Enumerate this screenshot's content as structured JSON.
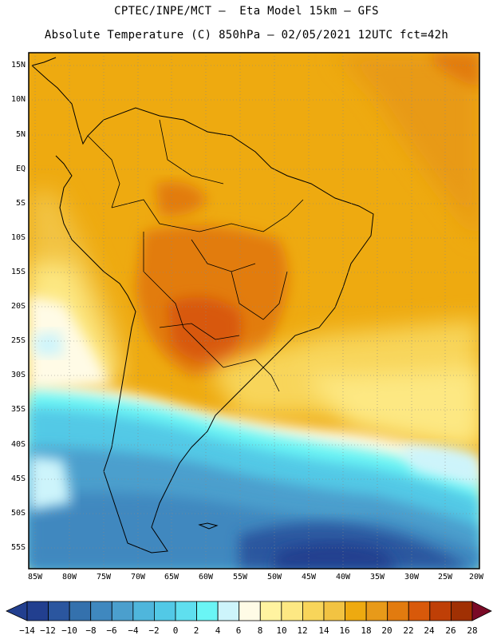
{
  "title": {
    "line1": "CPTEC/INPE/MCT –  Eta Model 15km – GFS",
    "line2": "Absolute Temperature (C) 850hPa – 02/05/2021 12UTC fct=42h"
  },
  "map": {
    "lon_range": [
      -85,
      -20
    ],
    "lat_range": [
      -58,
      17
    ],
    "lat_ticks": [
      {
        "value": 15,
        "label": "15N"
      },
      {
        "value": 10,
        "label": "10N"
      },
      {
        "value": 5,
        "label": "5N"
      },
      {
        "value": 0,
        "label": "EQ"
      },
      {
        "value": -5,
        "label": "5S"
      },
      {
        "value": -10,
        "label": "10S"
      },
      {
        "value": -15,
        "label": "15S"
      },
      {
        "value": -20,
        "label": "20S"
      },
      {
        "value": -25,
        "label": "25S"
      },
      {
        "value": -30,
        "label": "30S"
      },
      {
        "value": -35,
        "label": "35S"
      },
      {
        "value": -40,
        "label": "40S"
      },
      {
        "value": -45,
        "label": "45S"
      },
      {
        "value": -50,
        "label": "50S"
      },
      {
        "value": -55,
        "label": "55S"
      }
    ],
    "lon_ticks": [
      {
        "value": -85,
        "label": "85W"
      },
      {
        "value": -80,
        "label": "80W"
      },
      {
        "value": -75,
        "label": "75W"
      },
      {
        "value": -70,
        "label": "70W"
      },
      {
        "value": -65,
        "label": "65W"
      },
      {
        "value": -60,
        "label": "60W"
      },
      {
        "value": -55,
        "label": "55W"
      },
      {
        "value": -50,
        "label": "50W"
      },
      {
        "value": -45,
        "label": "45W"
      },
      {
        "value": -40,
        "label": "40W"
      },
      {
        "value": -35,
        "label": "35W"
      },
      {
        "value": -30,
        "label": "30W"
      },
      {
        "value": -25,
        "label": "25W"
      },
      {
        "value": -20,
        "label": "20W"
      }
    ]
  },
  "colorbar": {
    "levels": [
      -14,
      -12,
      -10,
      -8,
      -6,
      -4,
      -2,
      0,
      2,
      4,
      6,
      8,
      10,
      12,
      14,
      16,
      18,
      20,
      22,
      24,
      26,
      28
    ],
    "labels": [
      "−14",
      "−12",
      "−10",
      "−8",
      "−6",
      "−4",
      "−2",
      "0",
      "2",
      "4",
      "6",
      "8",
      "10",
      "12",
      "14",
      "16",
      "18",
      "20",
      "22",
      "24",
      "26",
      "28"
    ],
    "colors": [
      "#223f8f",
      "#2b569f",
      "#3471ad",
      "#3f88bf",
      "#4b9fcd",
      "#4fb6dc",
      "#52c9e6",
      "#5fdfef",
      "#6af5f5",
      "#cdf4fb",
      "#fffbe6",
      "#fff3a0",
      "#fde883",
      "#f8d55a",
      "#f2c342",
      "#eeaa10",
      "#e89a19",
      "#e27b0f",
      "#d8590a",
      "#bf3f06",
      "#a03003",
      "#832100",
      "#6e1600"
    ],
    "under_color": "#223f8f",
    "over_color": "#7a0a26"
  }
}
